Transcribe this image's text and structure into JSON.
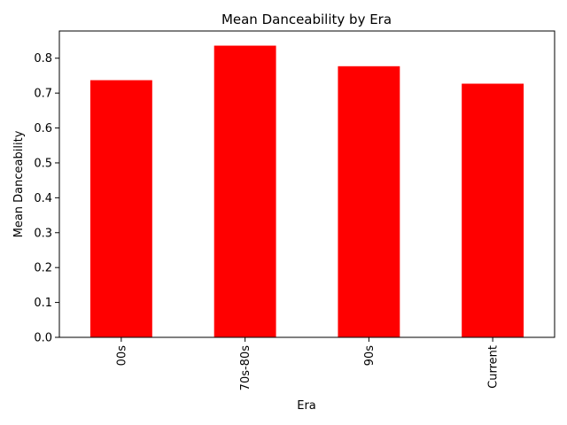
{
  "chart_data": {
    "type": "bar",
    "title": "Mean Danceability by Era",
    "xlabel": "Era",
    "ylabel": "Mean Danceability",
    "categories": [
      "00s",
      "70s-80s",
      "90s",
      "Current"
    ],
    "values": [
      0.737,
      0.836,
      0.777,
      0.727
    ],
    "ylim": [
      0,
      0.878
    ],
    "yticks": [
      0.0,
      0.1,
      0.2,
      0.3,
      0.4,
      0.5,
      0.6,
      0.7,
      0.8
    ],
    "ytick_labels": [
      "0.0",
      "0.1",
      "0.2",
      "0.3",
      "0.4",
      "0.5",
      "0.6",
      "0.7",
      "0.8"
    ],
    "bar_color": "#ff0000",
    "grid": false,
    "legend": "none"
  }
}
